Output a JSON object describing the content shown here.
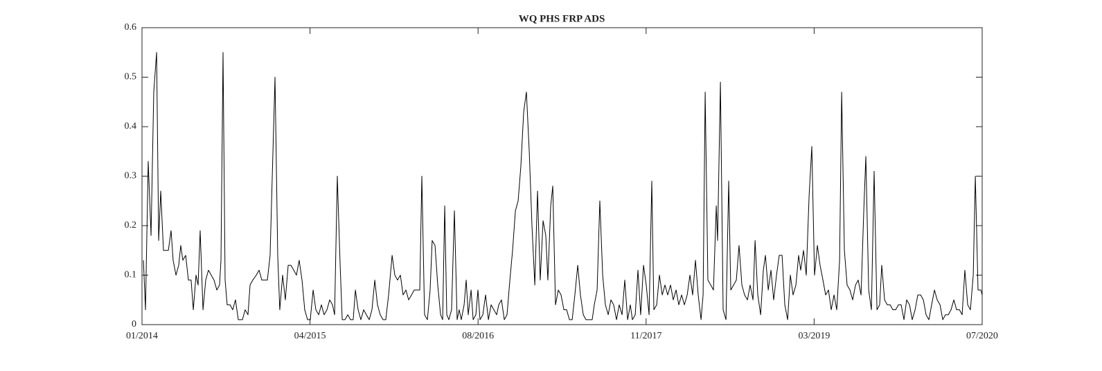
{
  "chart_data": {
    "type": "line",
    "title": "WQ PHS FRP ADS",
    "x": [
      2014.011,
      2014.027,
      2014.048,
      2014.07,
      2014.091,
      2014.113,
      2014.129,
      2014.145,
      2014.166,
      2014.188,
      2014.204,
      2014.225,
      2014.241,
      2014.263,
      2014.284,
      2014.3,
      2014.316,
      2014.338,
      2014.359,
      2014.38,
      2014.397,
      2014.418,
      2014.434,
      2014.45,
      2014.472,
      2014.493,
      2014.514,
      2014.536,
      2014.557,
      2014.579,
      2014.6,
      2014.611,
      2014.627,
      2014.643,
      2014.659,
      2014.681,
      2014.702,
      2014.723,
      2014.745,
      2014.777,
      2014.798,
      2014.82,
      2014.836,
      2014.857,
      2014.884,
      2014.906,
      2014.927,
      2014.949,
      2014.97,
      2014.991,
      2015.029,
      2015.05,
      2015.066,
      2015.088,
      2015.109,
      2015.131,
      2015.152,
      2015.174,
      2015.195,
      2015.216,
      2015.238,
      2015.259,
      2015.281,
      2015.302,
      2015.324,
      2015.345,
      2015.367,
      2015.388,
      2015.409,
      2015.431,
      2015.452,
      2015.474,
      2015.49,
      2015.511,
      2015.533,
      2015.549,
      2015.57,
      2015.592,
      2015.613,
      2015.634,
      2015.651,
      2015.672,
      2015.693,
      2015.715,
      2015.736,
      2015.758,
      2015.779,
      2015.801,
      2015.822,
      2015.843,
      2015.865,
      2015.886,
      2015.908,
      2015.935,
      2015.956,
      2015.977,
      2015.999,
      2016.02,
      2016.042,
      2016.063,
      2016.085,
      2016.106,
      2016.128,
      2016.149,
      2016.165,
      2016.186,
      2016.208,
      2016.229,
      2016.245,
      2016.267,
      2016.288,
      2016.31,
      2016.326,
      2016.342,
      2016.358,
      2016.374,
      2016.395,
      2016.417,
      2016.438,
      2016.454,
      2016.47,
      2016.492,
      2016.508,
      2016.524,
      2016.546,
      2016.562,
      2016.583,
      2016.599,
      2016.615,
      2016.637,
      2016.658,
      2016.68,
      2016.701,
      2016.722,
      2016.744,
      2016.76,
      2016.781,
      2016.803,
      2016.824,
      2016.846,
      2016.867,
      2016.889,
      2016.91,
      2016.931,
      2016.953,
      2016.974,
      2016.996,
      2017.017,
      2017.039,
      2017.06,
      2017.081,
      2017.103,
      2017.124,
      2017.14,
      2017.162,
      2017.178,
      2017.199,
      2017.221,
      2017.242,
      2017.264,
      2017.285,
      2017.307,
      2017.328,
      2017.349,
      2017.371,
      2017.392,
      2017.414,
      2017.435,
      2017.457,
      2017.483,
      2017.499,
      2017.521,
      2017.542,
      2017.564,
      2017.585,
      2017.607,
      2017.628,
      2017.649,
      2017.671,
      2017.692,
      2017.714,
      2017.735,
      2017.757,
      2017.778,
      2017.794,
      2017.816,
      2017.837,
      2017.858,
      2017.88,
      2017.901,
      2017.923,
      2017.944,
      2017.96,
      2017.982,
      2018.003,
      2018.025,
      2018.046,
      2018.067,
      2018.089,
      2018.11,
      2018.132,
      2018.153,
      2018.175,
      2018.196,
      2018.218,
      2018.239,
      2018.26,
      2018.282,
      2018.303,
      2018.325,
      2018.341,
      2018.357,
      2018.378,
      2018.4,
      2018.421,
      2018.443,
      2018.453,
      2018.475,
      2018.496,
      2018.518,
      2018.539,
      2018.555,
      2018.577,
      2018.598,
      2018.619,
      2018.641,
      2018.662,
      2018.684,
      2018.705,
      2018.727,
      2018.743,
      2018.764,
      2018.786,
      2018.807,
      2018.823,
      2018.845,
      2018.866,
      2018.887,
      2018.909,
      2018.93,
      2018.952,
      2018.973,
      2018.995,
      2019.016,
      2019.037,
      2019.059,
      2019.08,
      2019.096,
      2019.118,
      2019.139,
      2019.161,
      2019.182,
      2019.203,
      2019.225,
      2019.246,
      2019.268,
      2019.289,
      2019.311,
      2019.332,
      2019.354,
      2019.375,
      2019.397,
      2019.413,
      2019.434,
      2019.455,
      2019.477,
      2019.498,
      2019.52,
      2019.541,
      2019.563,
      2019.584,
      2019.6,
      2019.622,
      2019.643,
      2019.664,
      2019.686,
      2019.707,
      2019.723,
      2019.745,
      2019.766,
      2019.788,
      2019.809,
      2019.831,
      2019.852,
      2019.873,
      2019.895,
      2019.916,
      2019.938,
      2019.959,
      2019.981,
      2020.002,
      2020.024,
      2020.045,
      2020.066,
      2020.088,
      2020.109,
      2020.131,
      2020.152,
      2020.174,
      2020.195,
      2020.216,
      2020.238,
      2020.259,
      2020.281,
      2020.302,
      2020.324,
      2020.345,
      2020.366,
      2020.388,
      2020.409,
      2020.431,
      2020.447,
      2020.468,
      2020.49,
      2020.5
    ],
    "series": [
      {
        "color": "#000000",
        "values": [
          0.13,
          0.03,
          0.33,
          0.18,
          0.47,
          0.55,
          0.17,
          0.27,
          0.15,
          0.15,
          0.15,
          0.19,
          0.13,
          0.1,
          0.12,
          0.16,
          0.13,
          0.14,
          0.09,
          0.09,
          0.03,
          0.1,
          0.08,
          0.19,
          0.03,
          0.09,
          0.11,
          0.1,
          0.09,
          0.07,
          0.08,
          0.13,
          0.55,
          0.09,
          0.04,
          0.04,
          0.03,
          0.05,
          0.01,
          0.01,
          0.03,
          0.02,
          0.08,
          0.09,
          0.1,
          0.11,
          0.09,
          0.09,
          0.09,
          0.14,
          0.5,
          0.14,
          0.03,
          0.1,
          0.05,
          0.12,
          0.12,
          0.11,
          0.1,
          0.13,
          0.09,
          0.03,
          0.01,
          0.01,
          0.07,
          0.03,
          0.02,
          0.04,
          0.02,
          0.03,
          0.05,
          0.04,
          0.02,
          0.3,
          0.12,
          0.01,
          0.01,
          0.02,
          0.01,
          0.01,
          0.07,
          0.03,
          0.01,
          0.03,
          0.02,
          0.01,
          0.03,
          0.09,
          0.04,
          0.02,
          0.01,
          0.01,
          0.06,
          0.14,
          0.1,
          0.09,
          0.1,
          0.06,
          0.07,
          0.05,
          0.06,
          0.07,
          0.07,
          0.07,
          0.3,
          0.02,
          0.01,
          0.07,
          0.17,
          0.16,
          0.08,
          0.02,
          0.01,
          0.24,
          0.02,
          0.01,
          0.03,
          0.23,
          0.01,
          0.03,
          0.01,
          0.04,
          0.09,
          0.02,
          0.07,
          0.01,
          0.02,
          0.07,
          0.01,
          0.02,
          0.06,
          0.01,
          0.04,
          0.03,
          0.02,
          0.04,
          0.05,
          0.01,
          0.02,
          0.09,
          0.15,
          0.23,
          0.25,
          0.32,
          0.43,
          0.47,
          0.35,
          0.2,
          0.08,
          0.27,
          0.09,
          0.21,
          0.18,
          0.09,
          0.24,
          0.28,
          0.04,
          0.07,
          0.06,
          0.03,
          0.03,
          0.01,
          0.01,
          0.06,
          0.12,
          0.06,
          0.02,
          0.01,
          0.01,
          0.01,
          0.04,
          0.07,
          0.25,
          0.1,
          0.04,
          0.02,
          0.05,
          0.04,
          0.01,
          0.04,
          0.02,
          0.09,
          0.01,
          0.04,
          0.01,
          0.02,
          0.11,
          0.02,
          0.12,
          0.08,
          0.02,
          0.29,
          0.03,
          0.04,
          0.1,
          0.06,
          0.08,
          0.06,
          0.08,
          0.05,
          0.07,
          0.04,
          0.06,
          0.04,
          0.06,
          0.1,
          0.06,
          0.13,
          0.06,
          0.01,
          0.06,
          0.47,
          0.09,
          0.08,
          0.07,
          0.24,
          0.17,
          0.49,
          0.03,
          0.01,
          0.29,
          0.07,
          0.08,
          0.09,
          0.16,
          0.08,
          0.06,
          0.05,
          0.08,
          0.05,
          0.17,
          0.06,
          0.02,
          0.11,
          0.14,
          0.07,
          0.11,
          0.05,
          0.1,
          0.14,
          0.14,
          0.04,
          0.01,
          0.1,
          0.06,
          0.08,
          0.14,
          0.11,
          0.15,
          0.1,
          0.26,
          0.36,
          0.1,
          0.16,
          0.12,
          0.09,
          0.06,
          0.07,
          0.03,
          0.06,
          0.03,
          0.13,
          0.47,
          0.15,
          0.08,
          0.07,
          0.05,
          0.08,
          0.09,
          0.06,
          0.23,
          0.34,
          0.07,
          0.03,
          0.31,
          0.03,
          0.04,
          0.12,
          0.05,
          0.04,
          0.04,
          0.03,
          0.03,
          0.04,
          0.04,
          0.01,
          0.05,
          0.04,
          0.01,
          0.03,
          0.06,
          0.06,
          0.05,
          0.02,
          0.01,
          0.04,
          0.07,
          0.05,
          0.04,
          0.01,
          0.02,
          0.02,
          0.03,
          0.05,
          0.03,
          0.03,
          0.02,
          0.11,
          0.04,
          0.03,
          0.1,
          0.3,
          0.07,
          0.07,
          0.06
        ]
      }
    ],
    "xlim": [
      2014,
      2020.5
    ],
    "xticks": [
      {
        "value": 2014,
        "label": "01/2014"
      },
      {
        "value": 2015.3,
        "label": "04/2015"
      },
      {
        "value": 2016.6,
        "label": "08/2016"
      },
      {
        "value": 2017.9,
        "label": "11/2017"
      },
      {
        "value": 2019.2,
        "label": "03/2019"
      },
      {
        "value": 2020.5,
        "label": "07/2020"
      }
    ],
    "ylim": [
      0,
      0.6
    ],
    "yticks": [
      0,
      0.1,
      0.2,
      0.3,
      0.4,
      0.5,
      0.6
    ],
    "grid": false
  }
}
